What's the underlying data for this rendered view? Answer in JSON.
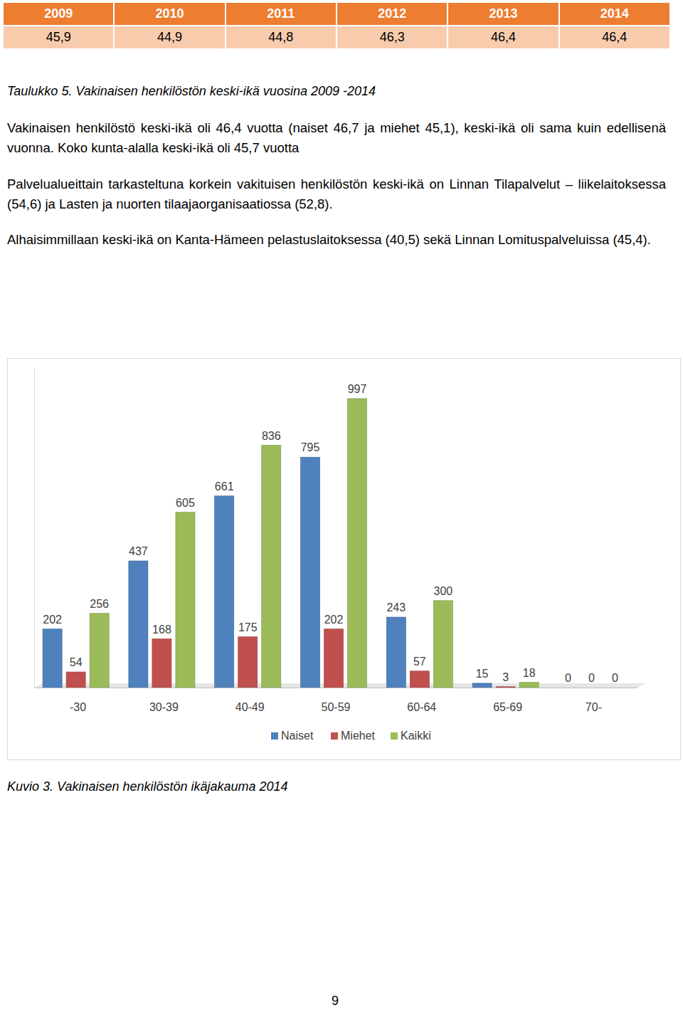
{
  "table": {
    "header": [
      "2009",
      "2010",
      "2011",
      "2012",
      "2013",
      "2014"
    ],
    "rows": [
      [
        "45,9",
        "44,9",
        "44,8",
        "46,3",
        "46,4",
        "46,4"
      ]
    ]
  },
  "table_caption": "Taulukko 5. Vakinaisen henkilöstön keski-ikä vuosina 2009 -2014",
  "paragraphs": [
    "Vakinaisen henkilöstö keski-ikä oli 46,4 vuotta (naiset 46,7 ja miehet 45,1), keski-ikä oli sama kuin edellisenä vuonna. Koko kunta-alalla keski-ikä oli 45,7 vuotta",
    "Palvelualueittain tarkasteltuna korkein vakituisen henkilöstön keski-ikä on Linnan Tilapalvelut – liikelaitoksessa (54,6) ja Lasten ja nuorten tilaajaorganisaatiossa (52,8).",
    "Alhaisimmillaan keski-ikä on Kanta-Hämeen pelastuslaitoksessa (40,5) sekä Linnan Lomituspalveluissa (45,4)."
  ],
  "chart_data": {
    "type": "bar",
    "categories": [
      "-30",
      "30-39",
      "40-49",
      "50-59",
      "60-64",
      "65-69",
      "70-"
    ],
    "series": [
      {
        "name": "Naiset",
        "color": "#4f81bd",
        "values": [
          202,
          437,
          661,
          795,
          243,
          15,
          0
        ]
      },
      {
        "name": "Miehet",
        "color": "#c0504d",
        "values": [
          54,
          168,
          175,
          202,
          57,
          3,
          0
        ]
      },
      {
        "name": "Kaikki",
        "color": "#9bbb59",
        "values": [
          256,
          605,
          836,
          997,
          300,
          18,
          0
        ]
      }
    ],
    "ylim": [
      0,
      1100
    ],
    "data_labels": true,
    "tick_labels": "x",
    "legend": "bottom"
  },
  "figure_caption": "Kuvio 3. Vakinaisen henkilöstön ikäjakauma 2014",
  "page_number": "9"
}
